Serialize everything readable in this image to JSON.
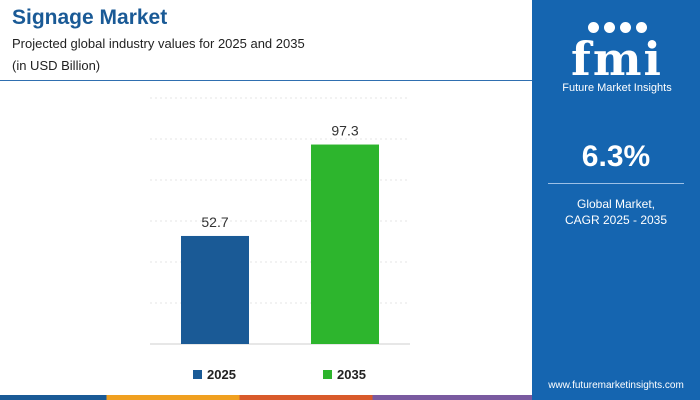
{
  "header": {
    "title": "Signage Market",
    "subtitle_line1": "Projected global industry values for 2025 and 2035",
    "subtitle_line2": "(in USD Billion)"
  },
  "sidebar": {
    "logo_text": "fmi",
    "logo_caption": "Future Market Insights",
    "cagr_value": "6.3%",
    "cagr_label_line1": "Global Market,",
    "cagr_label_line2": "CAGR 2025 - 2035",
    "website": "www.futuremarketinsights.com"
  },
  "colors": {
    "title": "#1a5a96",
    "panel": "#1565b0",
    "bar_2025": "#1a5a96",
    "bar_2035": "#2db52d"
  },
  "chart_data": {
    "type": "bar",
    "title": "Signage Market",
    "categories": [
      "2025",
      "2035"
    ],
    "values": [
      52.7,
      97.3
    ],
    "value_labels": [
      "52.7",
      "97.3"
    ],
    "ylim": [
      0,
      120
    ],
    "grid": true,
    "legend_position": "bottom",
    "legend": [
      {
        "name": "2025",
        "color": "#1a5a96"
      },
      {
        "name": "2035",
        "color": "#2db52d"
      }
    ]
  }
}
